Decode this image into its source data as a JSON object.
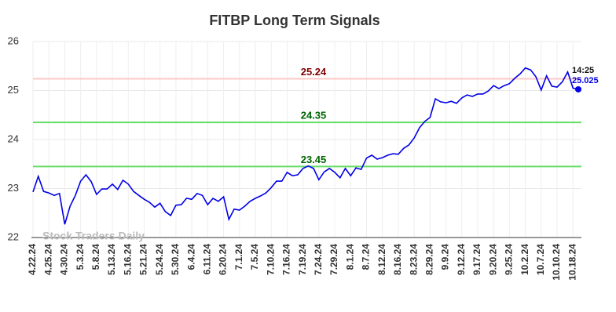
{
  "chart_data": {
    "type": "line",
    "title": "FITBP Long Term Signals",
    "categories": [
      "4.22.24",
      null,
      null,
      "4.25.24",
      null,
      null,
      "4.30.24",
      null,
      null,
      "5.3.24",
      null,
      null,
      "5.8.24",
      null,
      null,
      "5.13.24",
      null,
      null,
      "5.16.24",
      null,
      null,
      "5.21.24",
      null,
      null,
      "5.24.24",
      null,
      null,
      "5.30.24",
      null,
      null,
      "6.4.24",
      null,
      null,
      "6.11.24",
      null,
      null,
      "6.20.24",
      null,
      null,
      "7.1.24",
      null,
      null,
      "7.5.24",
      null,
      null,
      "7.10.24",
      null,
      null,
      "7.16.24",
      null,
      null,
      "7.19.24",
      null,
      null,
      "7.24.24",
      null,
      null,
      "7.29.24",
      null,
      null,
      "8.1.24",
      null,
      null,
      "8.7.24",
      null,
      null,
      "8.12.24",
      null,
      null,
      "8.16.24",
      null,
      null,
      "8.23.24",
      null,
      null,
      "8.29.24",
      null,
      null,
      "9.9.24",
      null,
      null,
      "9.12.24",
      null,
      null,
      "9.17.24",
      null,
      null,
      "9.20.24",
      null,
      null,
      "9.25.24",
      null,
      null,
      "10.2.24",
      null,
      null,
      "10.7.24",
      null,
      null,
      "10.10.24",
      null,
      null,
      "10.18.24",
      null
    ],
    "values": [
      22.93,
      23.25,
      22.94,
      22.91,
      22.86,
      22.9,
      22.27,
      22.64,
      22.86,
      23.15,
      23.28,
      23.14,
      22.88,
      22.99,
      22.99,
      23.09,
      22.98,
      23.17,
      23.09,
      22.94,
      22.86,
      22.78,
      22.72,
      22.62,
      22.7,
      22.53,
      22.45,
      22.66,
      22.67,
      22.8,
      22.78,
      22.9,
      22.86,
      22.67,
      22.8,
      22.74,
      22.83,
      22.37,
      22.58,
      22.56,
      22.64,
      22.74,
      22.8,
      22.85,
      22.91,
      23.02,
      23.15,
      23.15,
      23.33,
      23.26,
      23.28,
      23.41,
      23.46,
      23.41,
      23.18,
      23.34,
      23.41,
      23.33,
      23.22,
      23.41,
      23.26,
      23.42,
      23.39,
      23.62,
      23.68,
      23.6,
      23.63,
      23.68,
      23.71,
      23.7,
      23.82,
      23.89,
      24.03,
      24.24,
      24.37,
      24.45,
      24.83,
      24.77,
      24.75,
      24.78,
      24.74,
      24.85,
      24.91,
      24.88,
      24.93,
      24.93,
      24.99,
      25.1,
      25.04,
      25.1,
      25.14,
      25.25,
      25.34,
      25.46,
      25.42,
      25.28,
      25.01,
      25.3,
      25.09,
      25.07,
      25.18,
      25.38,
      25.05,
      25.025
    ],
    "color": "#0000e6",
    "ylim": [
      22,
      26
    ],
    "yticks": [
      22,
      23,
      24,
      25,
      26
    ],
    "grid": true,
    "levels": [
      {
        "value": 25.24,
        "color": "#ffc8c8",
        "label_color": "#800000"
      },
      {
        "value": 24.35,
        "color": "#66dd66",
        "label_color": "#006400"
      },
      {
        "value": 23.45,
        "color": "#66dd66",
        "label_color": "#006400"
      }
    ],
    "last_time": "14:25",
    "watermark": "Stock Traders Daily"
  }
}
